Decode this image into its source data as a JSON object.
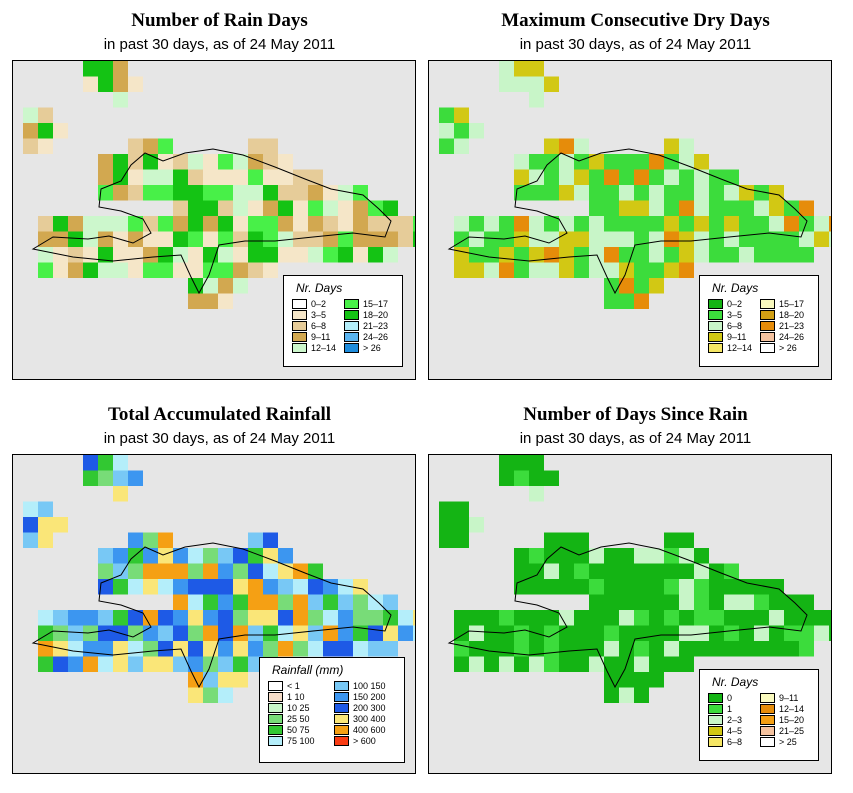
{
  "panels": [
    {
      "title": "Number of Rain Days",
      "subtitle": "in past 30 days, as of  24 May 2011",
      "legend": {
        "title": "Nr. Days",
        "items": [
          {
            "label": "0–2",
            "color": "#ffffff"
          },
          {
            "label": "3–5",
            "color": "#f5e6c8"
          },
          {
            "label": "6–8",
            "color": "#e6cc99"
          },
          {
            "label": "9–11",
            "color": "#d2a850"
          },
          {
            "label": "12–14",
            "color": "#ccf7cc"
          },
          {
            "label": "15–17",
            "color": "#48f048"
          },
          {
            "label": "18–20",
            "color": "#14c314"
          },
          {
            "label": "21–23",
            "color": "#b4eefa"
          },
          {
            "label": "24–26",
            "color": "#5ab4f0"
          },
          {
            "label": "> 26",
            "color": "#1e8cdc"
          }
        ]
      }
    },
    {
      "title": "Maximum Consecutive Dry Days",
      "subtitle": "in past 30 days, as of  24 May 2011",
      "legend": {
        "title": "Nr. Days",
        "items": [
          {
            "label": "0–2",
            "color": "#14b414"
          },
          {
            "label": "3–5",
            "color": "#3cdc3c"
          },
          {
            "label": "6–8",
            "color": "#c8f5c8"
          },
          {
            "label": "9–11",
            "color": "#d2c814"
          },
          {
            "label": "12–14",
            "color": "#f5e664"
          },
          {
            "label": "15–17",
            "color": "#fafabe"
          },
          {
            "label": "18–20",
            "color": "#d2a014"
          },
          {
            "label": "21–23",
            "color": "#e68c0a"
          },
          {
            "label": "24–26",
            "color": "#f5c3a0"
          },
          {
            "label": "> 26",
            "color": "#ffffff"
          }
        ]
      }
    },
    {
      "title": "Total Accumulated Rainfall",
      "subtitle": "in past 30 days, as of  24 May 2011",
      "legend": {
        "title": "Rainfall (mm)",
        "items": [
          {
            "label": "< 1",
            "color": "#ffffff"
          },
          {
            "label": "1   10",
            "color": "#f5dcc8"
          },
          {
            "label": "10   25",
            "color": "#c8f5c8"
          },
          {
            "label": "25   50",
            "color": "#78dc78"
          },
          {
            "label": "50   75",
            "color": "#32c832"
          },
          {
            "label": "75   100",
            "color": "#b4eefa"
          },
          {
            "label": "100   150",
            "color": "#78c8f5"
          },
          {
            "label": "150   200",
            "color": "#3c96f0"
          },
          {
            "label": "200   300",
            "color": "#1e5ae6"
          },
          {
            "label": "300   400",
            "color": "#fae678"
          },
          {
            "label": "400   600",
            "color": "#f5a014"
          },
          {
            "label": "> 600",
            "color": "#fa3c14"
          }
        ]
      }
    },
    {
      "title": "Number of Days Since Rain",
      "subtitle": "in past 30 days, as of  24 May 2011",
      "legend": {
        "title": "Nr. Days",
        "items": [
          {
            "label": "0",
            "color": "#14b414"
          },
          {
            "label": "1",
            "color": "#3cdc3c"
          },
          {
            "label": "2–3",
            "color": "#c8f5c8"
          },
          {
            "label": "4–5",
            "color": "#d2c814"
          },
          {
            "label": "6–8",
            "color": "#f5e664"
          },
          {
            "label": "9–11",
            "color": "#fafabe"
          },
          {
            "label": "12–14",
            "color": "#e68c0a"
          },
          {
            "label": "15–20",
            "color": "#f5a014"
          },
          {
            "label": "21–25",
            "color": "#f5c3a0"
          },
          {
            "label": "> 25",
            "color": "#ffffff"
          }
        ]
      }
    }
  ]
}
